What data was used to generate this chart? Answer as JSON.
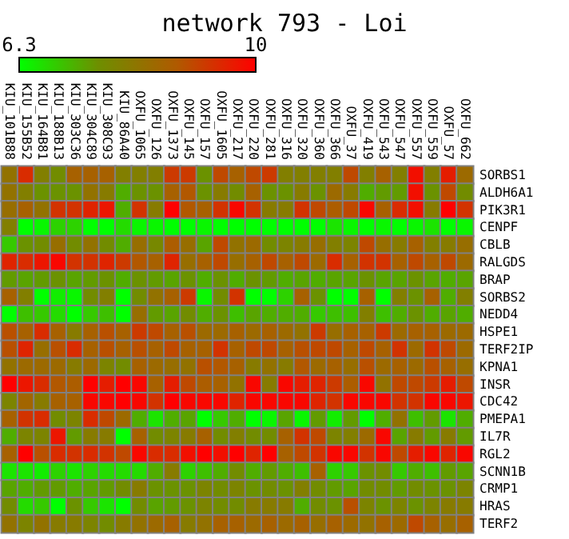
{
  "chart_data": {
    "type": "heatmap",
    "title": "network 793 - Loi",
    "categories": [
      "KIU_101B88",
      "KIU_155B52",
      "KIU_164B81",
      "KIU_188B13",
      "KIU_303C36",
      "KIU_304C89",
      "KIU_308C93",
      "KIU_86A40",
      "OXFU_1065",
      "OXFU_126",
      "OXFU_1373",
      "OXFU_145",
      "OXFU_157",
      "OXFU_1605",
      "OXFU_217",
      "OXFU_220",
      "OXFU_281",
      "OXFU_316",
      "OXFU_320",
      "OXFU_360",
      "OXFU_366",
      "OXFU_37",
      "OXFU_419",
      "OXFU_543",
      "OXFU_547",
      "OXFU_557",
      "OXFU_559",
      "OXFU_57",
      "OXFU_662"
    ],
    "y_categories": [
      "SORBS1",
      "ALDH6A1",
      "PIK3R1",
      "CENPF",
      "CBLB",
      "RALGDS",
      "BRAP",
      "SORBS2",
      "NEDD4",
      "HSPE1",
      "TERF2IP",
      "KPNA1",
      "INSR",
      "CDC42",
      "PMEPA1",
      "IL7R",
      "RGL2",
      "SCNN1B",
      "CRMP1",
      "HRAS",
      "TERF2"
    ],
    "cells": [
      [
        8.2,
        9.4,
        7.9,
        7.6,
        8.6,
        8.6,
        8.6,
        7.9,
        7.9,
        7.9,
        9.2,
        9.2,
        7.5,
        9.0,
        8.6,
        9.0,
        9.2,
        7.9,
        7.9,
        7.9,
        7.9,
        9.0,
        7.9,
        8.6,
        7.9,
        9.8,
        7.9,
        9.6,
        8.4
      ],
      [
        8.2,
        7.9,
        7.5,
        7.5,
        7.5,
        8.2,
        8.0,
        7.2,
        7.5,
        7.5,
        8.6,
        8.8,
        7.5,
        8.0,
        7.6,
        8.6,
        7.5,
        7.5,
        8.0,
        7.5,
        8.4,
        8.0,
        7.2,
        7.4,
        7.4,
        9.8,
        7.5,
        9.0,
        7.6
      ],
      [
        8.3,
        8.6,
        8.2,
        9.3,
        9.3,
        9.5,
        9.7,
        7.2,
        9.3,
        8.0,
        10.0,
        8.8,
        8.6,
        9.3,
        9.9,
        9.3,
        8.0,
        8.0,
        9.3,
        9.0,
        8.7,
        9.0,
        9.9,
        8.6,
        9.4,
        9.8,
        8.0,
        10.0,
        9.3
      ],
      [
        7.9,
        6.3,
        6.4,
        6.8,
        6.8,
        6.3,
        6.3,
        6.7,
        6.4,
        6.4,
        6.3,
        6.3,
        6.4,
        6.3,
        6.3,
        6.3,
        6.3,
        6.3,
        6.3,
        6.3,
        6.6,
        6.4,
        6.3,
        6.4,
        6.3,
        6.4,
        6.6,
        6.3,
        6.4
      ],
      [
        6.9,
        7.5,
        7.6,
        8.3,
        7.6,
        8.2,
        7.6,
        7.2,
        8.3,
        7.7,
        8.7,
        8.3,
        7.3,
        9.0,
        8.2,
        8.4,
        7.6,
        7.8,
        8.0,
        8.3,
        7.9,
        7.8,
        9.0,
        8.3,
        8.0,
        8.6,
        7.9,
        8.0,
        8.3
      ],
      [
        9.5,
        9.4,
        9.7,
        9.9,
        9.3,
        9.3,
        9.5,
        9.2,
        8.8,
        8.6,
        9.5,
        8.3,
        8.6,
        9.0,
        8.3,
        8.6,
        9.0,
        8.6,
        9.0,
        8.4,
        9.4,
        8.6,
        9.3,
        9.3,
        8.6,
        9.0,
        8.6,
        9.0,
        8.4
      ],
      [
        7.4,
        7.3,
        7.4,
        7.5,
        7.3,
        7.4,
        7.5,
        7.2,
        7.5,
        7.4,
        7.3,
        7.5,
        7.2,
        7.5,
        7.2,
        7.5,
        7.4,
        7.2,
        7.3,
        7.2,
        7.3,
        7.3,
        7.5,
        7.3,
        7.3,
        7.5,
        7.3,
        7.2,
        7.3
      ],
      [
        8.6,
        7.9,
        6.3,
        6.5,
        6.4,
        7.6,
        7.9,
        6.3,
        7.6,
        8.2,
        8.6,
        9.2,
        6.4,
        7.6,
        9.3,
        6.3,
        6.3,
        6.8,
        8.6,
        7.5,
        6.3,
        6.3,
        8.6,
        6.3,
        7.9,
        7.5,
        8.6,
        7.2,
        7.9
      ],
      [
        6.3,
        7.0,
        6.9,
        6.7,
        6.3,
        6.9,
        7.0,
        6.3,
        8.3,
        7.4,
        7.3,
        7.6,
        7.2,
        7.5,
        7.0,
        7.3,
        7.2,
        7.2,
        7.2,
        6.9,
        7.0,
        7.0,
        7.9,
        7.0,
        7.2,
        7.5,
        7.2,
        7.3,
        7.2
      ],
      [
        8.9,
        8.6,
        9.4,
        8.6,
        8.0,
        8.6,
        8.9,
        8.6,
        9.2,
        9.0,
        8.6,
        8.9,
        8.4,
        8.4,
        8.6,
        8.4,
        8.6,
        8.4,
        8.2,
        9.2,
        8.3,
        8.6,
        8.6,
        9.2,
        8.4,
        8.6,
        8.6,
        8.4,
        8.4
      ],
      [
        8.9,
        9.5,
        8.3,
        8.9,
        9.4,
        8.6,
        8.9,
        8.6,
        8.9,
        8.6,
        9.0,
        8.6,
        8.6,
        9.3,
        8.6,
        9.0,
        9.0,
        8.6,
        8.9,
        9.0,
        9.0,
        8.6,
        9.0,
        8.6,
        9.3,
        8.4,
        9.3,
        9.0,
        8.4
      ],
      [
        8.2,
        8.4,
        8.4,
        8.4,
        8.0,
        8.4,
        7.8,
        7.6,
        8.6,
        8.4,
        8.3,
        8.2,
        8.9,
        8.8,
        8.6,
        8.0,
        8.2,
        8.0,
        8.8,
        8.4,
        8.6,
        8.3,
        8.9,
        8.4,
        8.6,
        8.4,
        8.9,
        8.6,
        8.3
      ],
      [
        10.0,
        9.7,
        9.4,
        8.8,
        8.7,
        10.0,
        9.6,
        10.0,
        9.9,
        8.6,
        9.6,
        9.0,
        8.7,
        8.6,
        8.2,
        9.9,
        8.0,
        9.9,
        9.6,
        9.5,
        9.2,
        8.7,
        9.9,
        8.2,
        9.0,
        9.0,
        9.2,
        9.6,
        9.0
      ],
      [
        7.8,
        8.5,
        8.0,
        8.6,
        8.6,
        9.9,
        9.9,
        10.0,
        9.9,
        9.3,
        10.0,
        9.9,
        9.9,
        9.9,
        9.5,
        9.9,
        9.9,
        9.9,
        9.9,
        9.5,
        9.3,
        9.9,
        9.9,
        9.9,
        9.3,
        9.3,
        9.9,
        9.9,
        9.7
      ],
      [
        8.6,
        9.3,
        9.4,
        7.6,
        7.8,
        9.4,
        9.0,
        8.4,
        7.2,
        6.6,
        7.2,
        7.3,
        6.3,
        6.9,
        7.2,
        6.3,
        6.4,
        7.3,
        6.4,
        7.4,
        6.5,
        7.4,
        6.3,
        7.2,
        8.2,
        7.0,
        7.4,
        6.6,
        7.2
      ],
      [
        7.2,
        7.8,
        7.8,
        9.7,
        7.4,
        8.0,
        8.0,
        6.3,
        8.6,
        7.6,
        7.8,
        8.0,
        8.6,
        7.6,
        7.9,
        7.6,
        7.6,
        8.6,
        9.3,
        9.0,
        7.8,
        7.9,
        8.4,
        9.9,
        7.3,
        8.0,
        7.4,
        8.0,
        7.4
      ],
      [
        8.6,
        10.0,
        8.9,
        9.4,
        9.3,
        9.4,
        9.3,
        9.0,
        9.9,
        9.4,
        9.4,
        9.8,
        10.0,
        9.8,
        10.0,
        9.5,
        10.0,
        8.6,
        9.0,
        9.3,
        9.9,
        9.9,
        9.3,
        9.9,
        9.0,
        9.6,
        9.9,
        9.5,
        9.9
      ],
      [
        6.6,
        6.6,
        6.5,
        6.8,
        6.6,
        6.8,
        6.7,
        6.7,
        6.7,
        7.2,
        8.0,
        6.8,
        7.0,
        7.2,
        7.6,
        7.2,
        7.4,
        7.2,
        7.0,
        8.6,
        6.8,
        6.9,
        7.5,
        7.6,
        6.9,
        7.2,
        7.0,
        7.4,
        7.3
      ],
      [
        7.3,
        7.2,
        7.4,
        7.4,
        7.2,
        7.3,
        7.4,
        7.6,
        8.0,
        7.5,
        7.5,
        7.5,
        7.8,
        7.6,
        7.8,
        7.5,
        7.6,
        7.5,
        7.9,
        7.6,
        7.4,
        7.3,
        7.6,
        7.6,
        7.4,
        7.6,
        7.5,
        7.5,
        7.8
      ],
      [
        7.6,
        6.7,
        6.9,
        6.3,
        7.5,
        6.9,
        6.6,
        6.3,
        7.6,
        7.3,
        7.4,
        7.5,
        7.8,
        7.6,
        7.6,
        8.0,
        8.0,
        8.0,
        7.2,
        7.6,
        7.5,
        8.9,
        7.8,
        7.5,
        7.8,
        7.5,
        7.8,
        8.0,
        8.0
      ],
      [
        8.2,
        7.8,
        8.2,
        8.0,
        8.0,
        7.8,
        7.6,
        8.0,
        8.2,
        8.4,
        8.6,
        8.0,
        8.2,
        8.6,
        8.6,
        8.4,
        8.6,
        8.4,
        8.6,
        8.3,
        8.6,
        8.4,
        8.2,
        8.6,
        8.4,
        9.0,
        8.6,
        8.3,
        8.6
      ]
    ],
    "clim": [
      6.3,
      10
    ],
    "cticks": [
      6.3,
      10
    ],
    "grid": false
  }
}
